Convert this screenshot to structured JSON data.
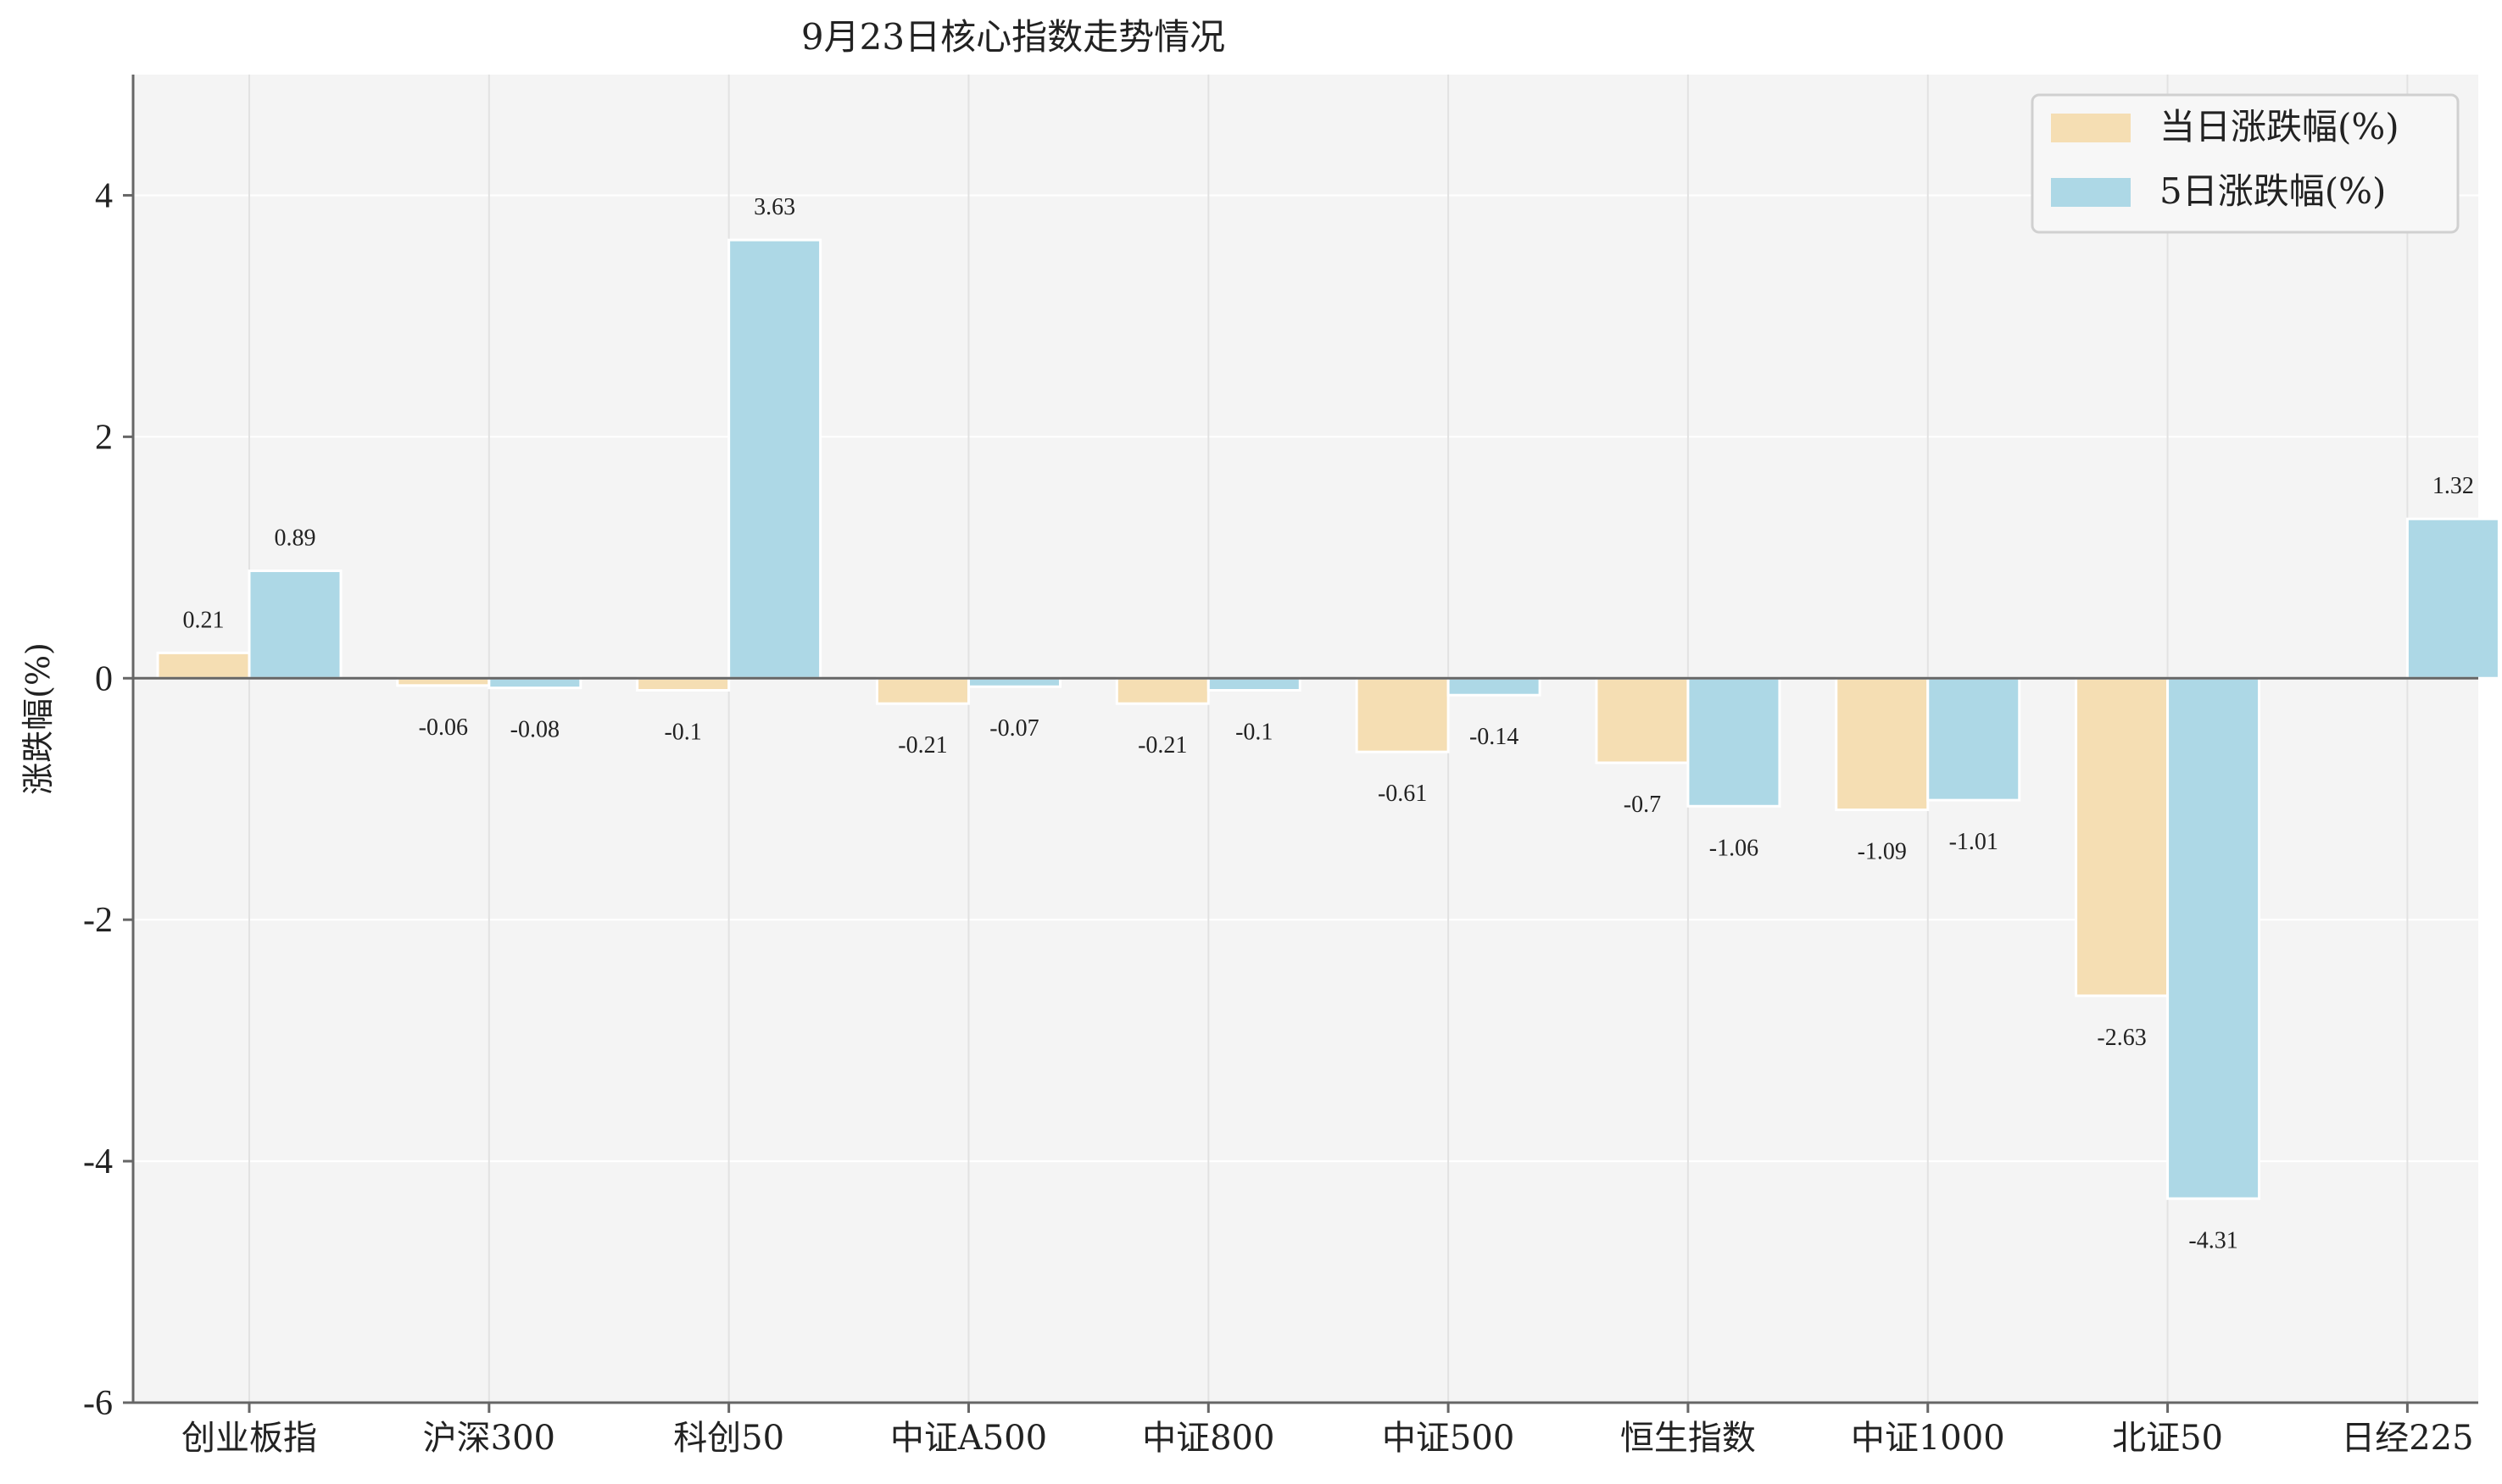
{
  "chart_data": {
    "type": "bar",
    "title": "9月23日核心指数走势情况",
    "xlabel": "",
    "ylabel": "涨跌幅(%)",
    "ylim": [
      -6,
      5
    ],
    "yticks": [
      -6,
      -4,
      -2,
      0,
      2,
      4
    ],
    "ytick_labels": [
      "-6",
      "-4",
      "-2",
      "0",
      "2",
      "4"
    ],
    "grid": true,
    "legend_position": "top-right",
    "categories": [
      "创业板指",
      "沪深300",
      "科创50",
      "中证A500",
      "中证800",
      "中证500",
      "恒生指数",
      "中证1000",
      "北证50",
      "日经225"
    ],
    "series": [
      {
        "name": "当日涨跌幅(%)",
        "color": "#f5deb3",
        "values": [
          0.21,
          -0.06,
          -0.1,
          -0.21,
          -0.21,
          -0.61,
          -0.7,
          -1.09,
          -2.63,
          null
        ],
        "labels": [
          "0.21",
          "-0.06",
          "-0.1",
          "-0.21",
          "-0.21",
          "-0.61",
          "-0.7",
          "-1.09",
          "-2.63",
          ""
        ]
      },
      {
        "name": "5日涨跌幅(%)",
        "color": "#add8e6",
        "values": [
          0.89,
          -0.08,
          3.63,
          -0.07,
          -0.1,
          -0.14,
          -1.06,
          -1.01,
          -4.31,
          1.32
        ],
        "labels": [
          "0.89",
          "-0.08",
          "3.63",
          "-0.07",
          "-0.1",
          "-0.14",
          "-1.06",
          "-1.01",
          "-4.31",
          "1.32"
        ]
      }
    ],
    "colors": {
      "plot_background": "#f4f4f4",
      "grid": "#ffffff",
      "zero_line": "#666666",
      "axis": "#666666"
    }
  }
}
